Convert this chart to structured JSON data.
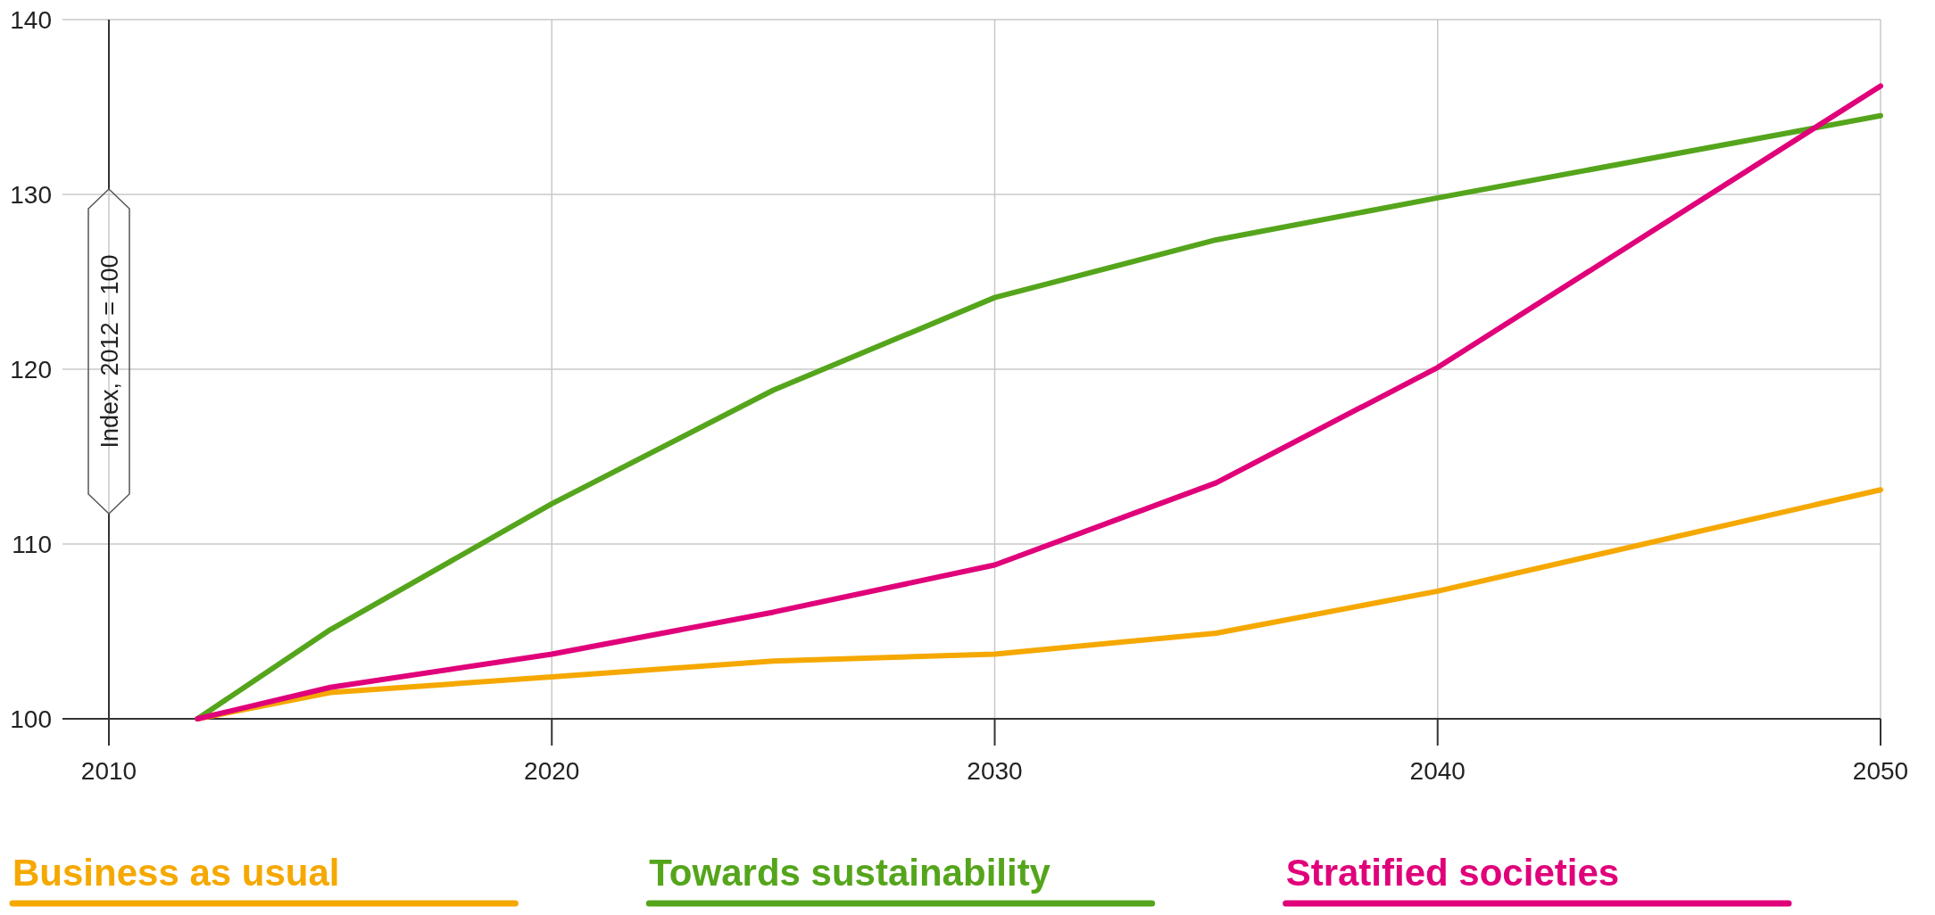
{
  "chart_data": {
    "type": "line",
    "ylabel": "Index, 2012 = 100",
    "xlim": [
      2010,
      2050
    ],
    "xticks": [
      2010,
      2020,
      2030,
      2040,
      2050
    ],
    "ylim": [
      100,
      140
    ],
    "yticks": [
      100,
      110,
      120,
      130,
      140
    ],
    "grid": true,
    "legend": "bottom",
    "marker": "none",
    "line_style": "solid",
    "x": [
      2012,
      2015,
      2020,
      2025,
      2030,
      2035,
      2040,
      2050
    ],
    "series": [
      {
        "name": "Business as usual",
        "color": "#f5a800",
        "values": [
          100,
          101.5,
          102.4,
          103.3,
          103.7,
          104.9,
          107.3,
          113.1
        ]
      },
      {
        "name": "Towards sustainability",
        "color": "#55a51c",
        "values": [
          100,
          105.1,
          112.3,
          118.8,
          124.1,
          127.4,
          129.8,
          134.5
        ]
      },
      {
        "name": "Stratified societies",
        "color": "#e0007a",
        "values": [
          100,
          101.8,
          103.7,
          106.1,
          108.8,
          113.5,
          120.1,
          136.2
        ]
      }
    ]
  }
}
